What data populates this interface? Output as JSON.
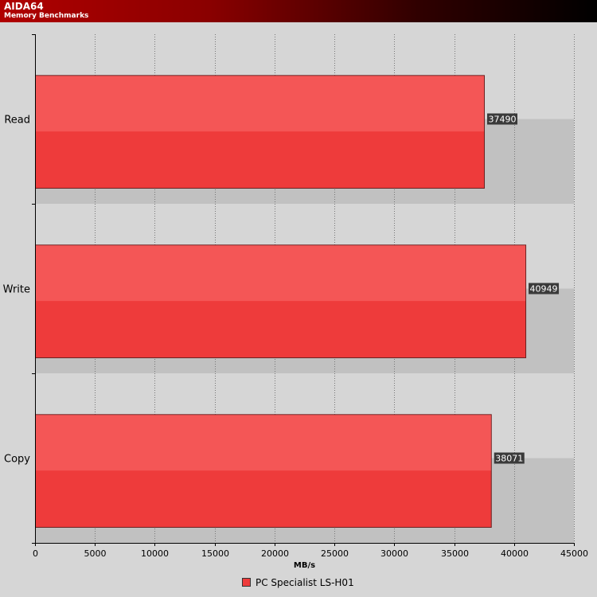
{
  "header": {
    "title": "AIDA64",
    "subtitle": "Memory Benchmarks"
  },
  "colors": {
    "bar": "#ee3b3b",
    "bar_highlight": "#f45a5a",
    "bar_border": "#6a2020",
    "shadow_band": "#c1c1c1",
    "plot_background": "#d6d6d6",
    "value_label_background": "#3a3a3a"
  },
  "chart_data": {
    "type": "bar",
    "orientation": "horizontal",
    "title": "AIDA64",
    "subtitle": "Memory Benchmarks",
    "categories": [
      "Read",
      "Write",
      "Copy"
    ],
    "series": [
      {
        "name": "PC Specialist LS-H01",
        "values": [
          37490,
          40949,
          38071
        ]
      }
    ],
    "xlabel": "MB/s",
    "ylabel": "",
    "xlim": [
      0,
      45000
    ],
    "xticks": [
      0,
      5000,
      10000,
      15000,
      20000,
      25000,
      30000,
      35000,
      40000,
      45000
    ],
    "grid": "vertical dotted",
    "data_labels": true,
    "legend_position": "bottom"
  }
}
